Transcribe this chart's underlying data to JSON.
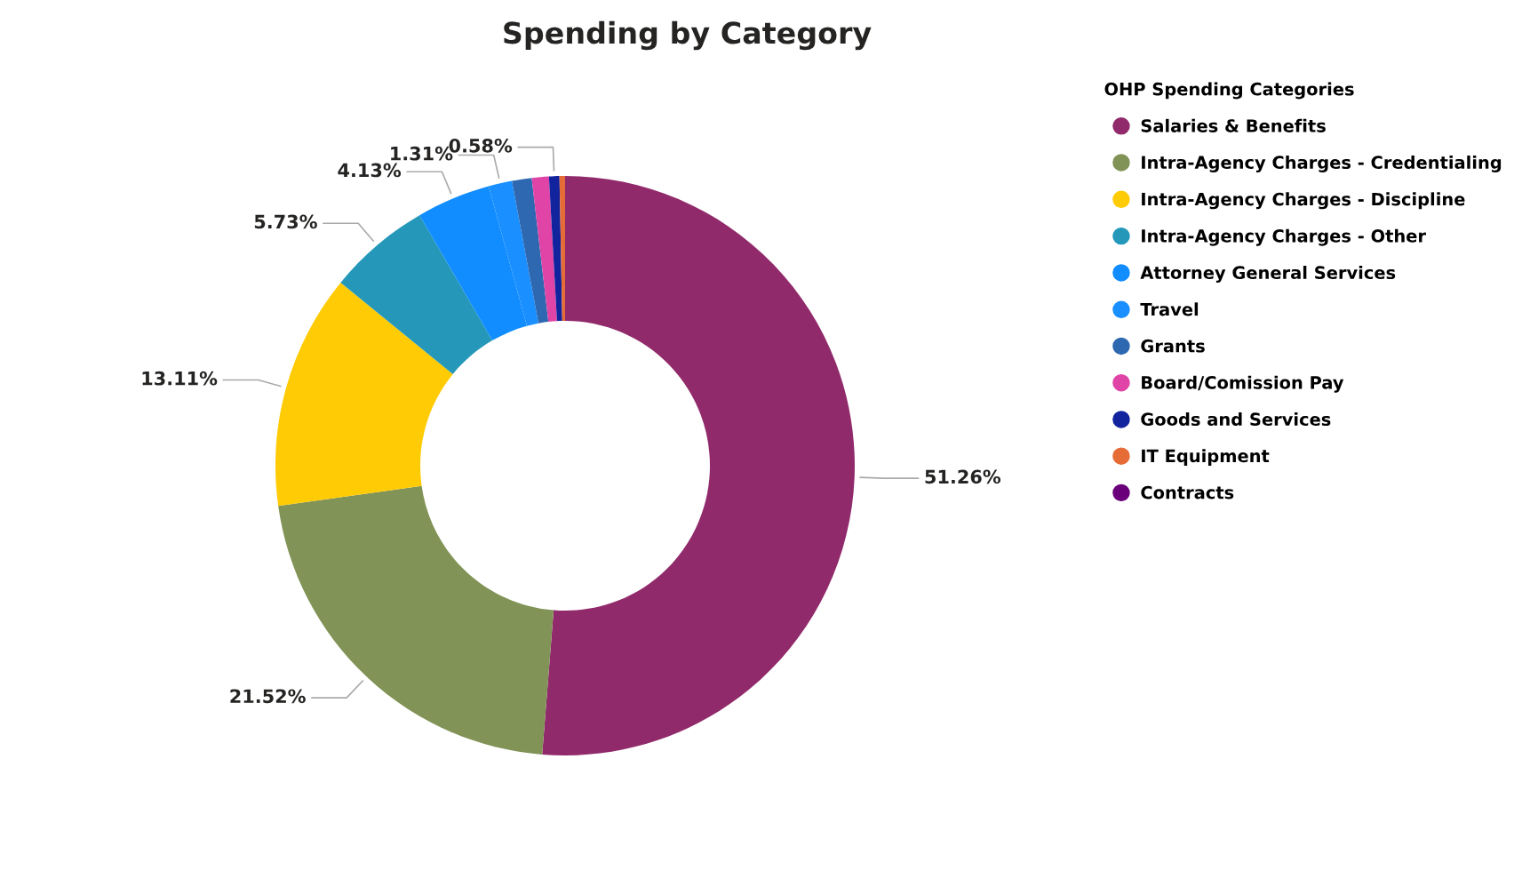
{
  "chart_data": {
    "type": "donut",
    "title": "Spending by Category",
    "legend_title": "OHP Spending Categories",
    "legend": "right",
    "categories": [
      "Salaries & Benefits",
      "Intra-Agency Charges - Credentialing",
      "Intra-Agency Charges - Discipline",
      "Intra-Agency Charges - Other",
      "Attorney General Services",
      "Travel",
      "Grants",
      "Board/Comission Pay",
      "Goods and Services",
      "IT Equipment",
      "Contracts"
    ],
    "values": [
      51.26,
      21.52,
      13.11,
      5.73,
      4.13,
      1.31,
      1.1,
      0.95,
      0.58,
      0.31,
      null
    ],
    "colors": [
      "#912a6b",
      "#819356",
      "#ffcb05",
      "#2598ba",
      "#118dff",
      "#1a8fff",
      "#2e68b0",
      "#e044a7",
      "#12239e",
      "#e66c37",
      "#6b007b"
    ],
    "value_labels": [
      "51.26%",
      "21.52%",
      "13.11%",
      "5.73%",
      "4.13%",
      "1.31%",
      null,
      null,
      "0.58%",
      null,
      null
    ]
  }
}
